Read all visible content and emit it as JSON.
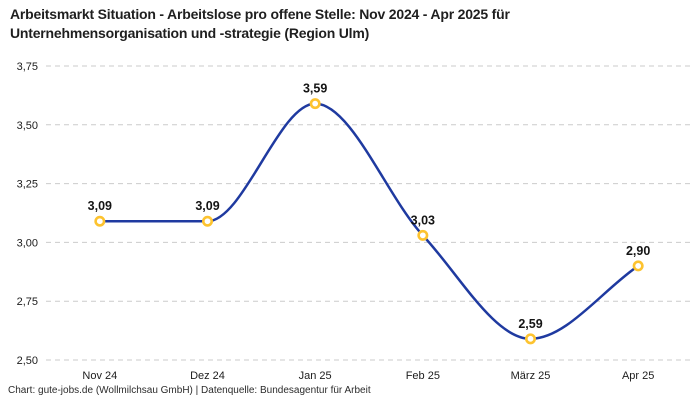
{
  "header": {
    "title_line1": "Arbeitsmarkt Situation - Arbeitslose pro offene Stelle: Nov 2024 - Apr 2025 für",
    "title_line2": "Unternehmensorganisation und -strategie (Region Ulm)"
  },
  "footer": {
    "credit": "Chart: gute-jobs.de (Wollmilchsau GmbH) | Datenquelle: Bundesagentur für Arbeit"
  },
  "chart_data": {
    "type": "line",
    "smooth": true,
    "title": "Arbeitsmarkt Situation - Arbeitslose pro offene Stelle: Nov 2024 - Apr 2025 für Unternehmensorganisation und -strategie (Region Ulm)",
    "categories": [
      "Nov 24",
      "Dez 24",
      "Jan 25",
      "Feb 25",
      "März 25",
      "Apr 25"
    ],
    "values": [
      3.09,
      3.09,
      3.59,
      3.03,
      2.59,
      2.9
    ],
    "value_labels": [
      "3,09",
      "3,09",
      "3,59",
      "3,03",
      "2,59",
      "2,90"
    ],
    "xlabel": "",
    "ylabel": "",
    "ylim": [
      2.5,
      3.75
    ],
    "yticks": [
      {
        "value": 3.75,
        "label": "3,75"
      },
      {
        "value": 3.5,
        "label": "3,50"
      },
      {
        "value": 3.25,
        "label": "3,25"
      },
      {
        "value": 3.0,
        "label": "3,00"
      },
      {
        "value": 2.75,
        "label": "2,75"
      },
      {
        "value": 2.5,
        "label": "2,50"
      }
    ],
    "grid": "horizontal-dashed",
    "legend": "none",
    "colors": {
      "line": "#1f3aa0",
      "marker_ring": "#fdc32f",
      "marker_fill": "#ffffff",
      "gridline": "#cbcbcb",
      "tick_text": "#1c1c1c",
      "data_label_text": "#141414"
    }
  }
}
